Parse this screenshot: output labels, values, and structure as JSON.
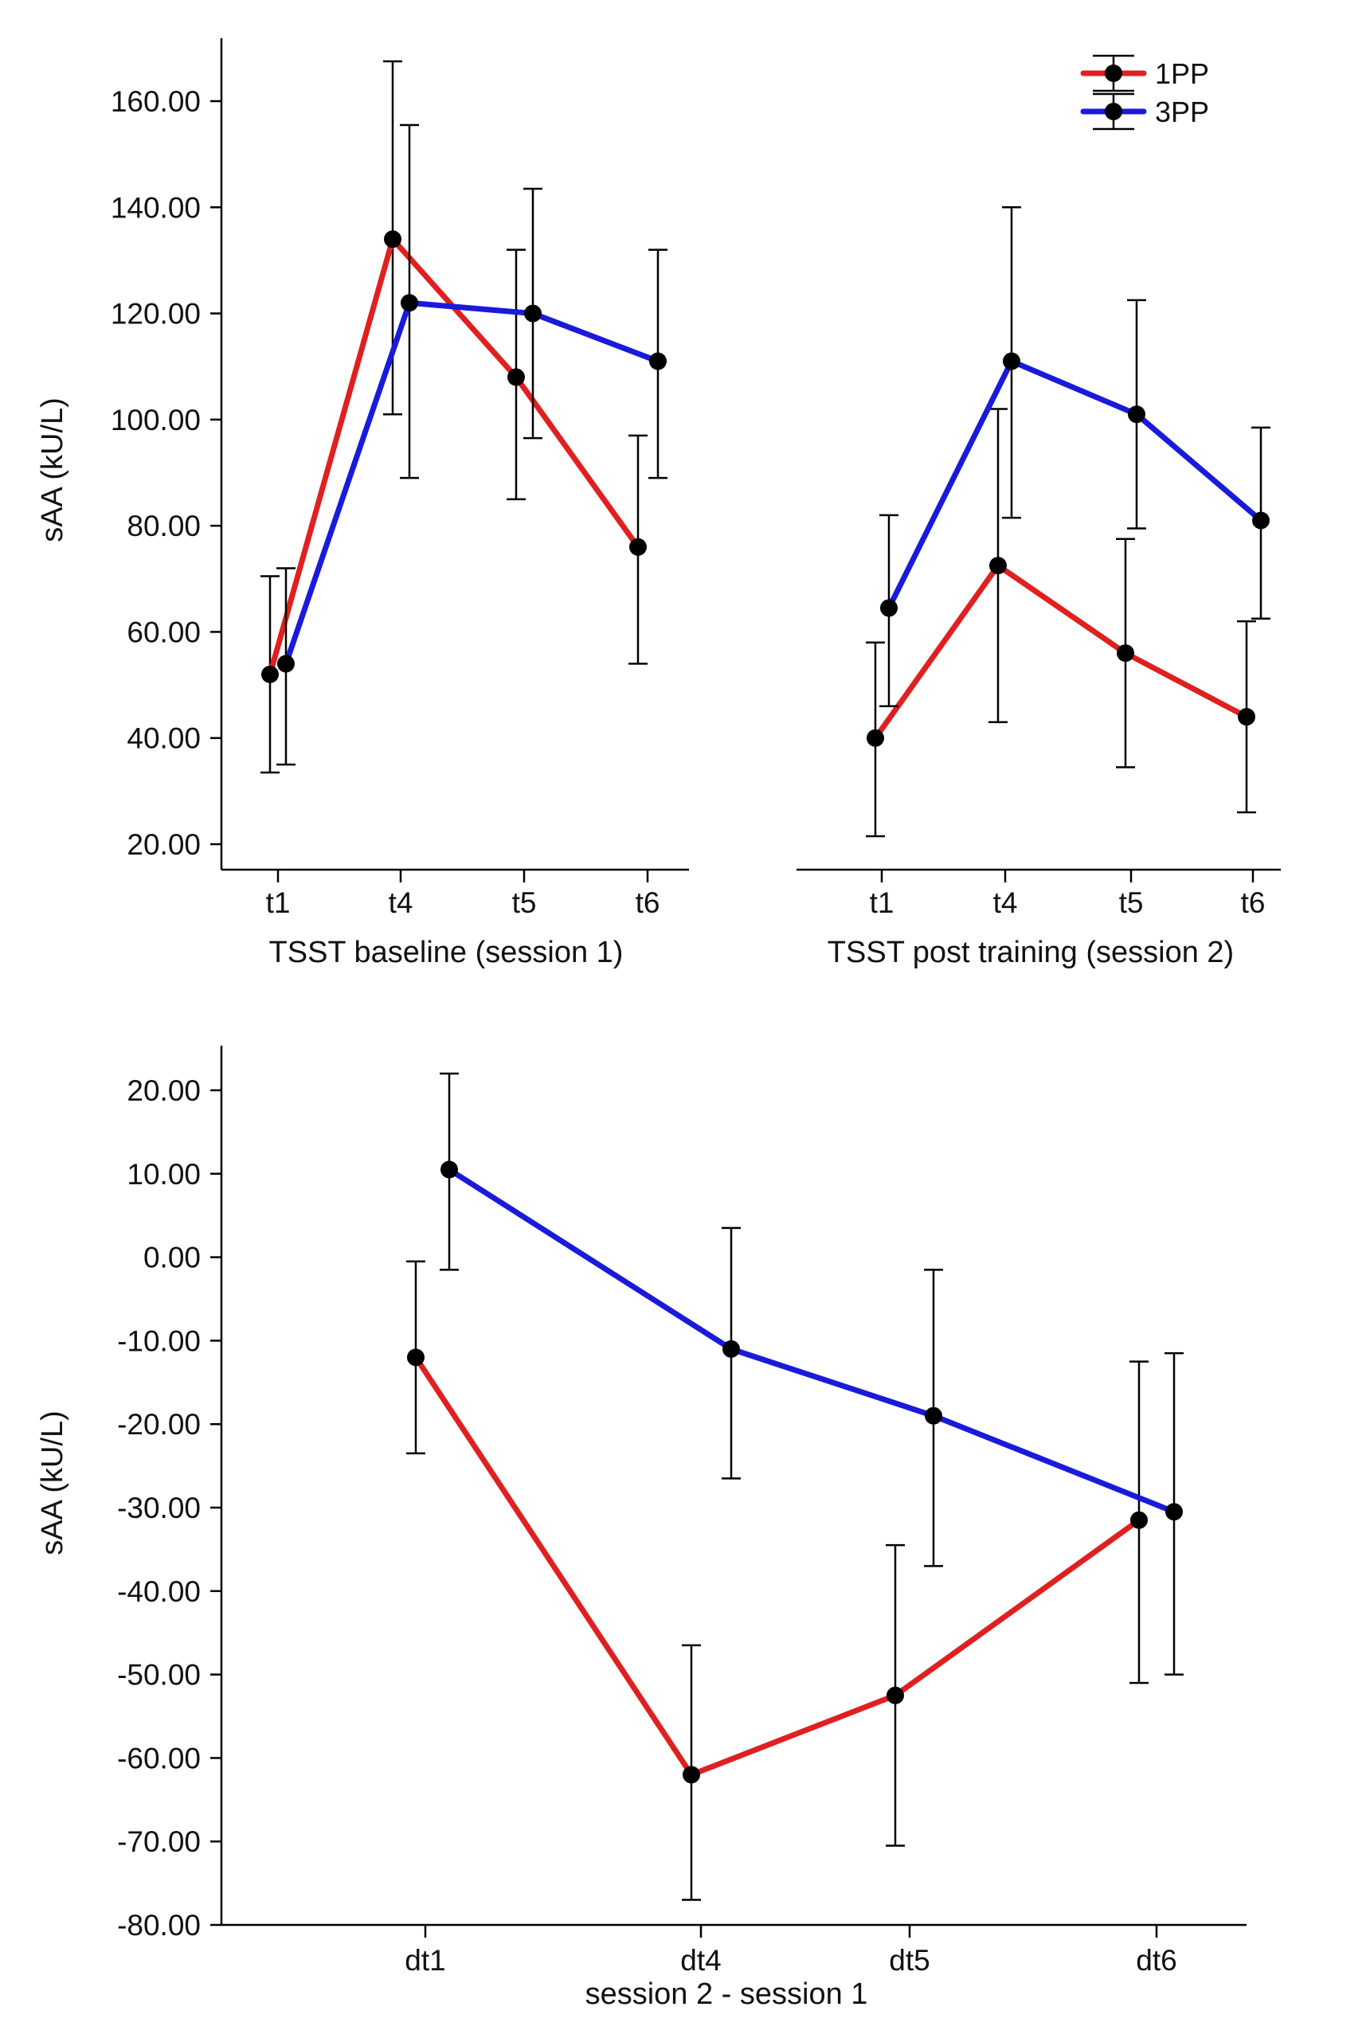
{
  "chart_data": [
    {
      "type": "line",
      "id": "baseline",
      "title": "",
      "xlabel": "TSST baseline (session 1)",
      "ylabel": "sAA (kU/L)",
      "categories": [
        "t1",
        "t4",
        "t5",
        "t6"
      ],
      "ylim": [
        16,
        171
      ],
      "yticks": [
        "20.00",
        "40.00",
        "60.00",
        "80.00",
        "100.00",
        "120.00",
        "140.00",
        "160.00"
      ],
      "grid": false,
      "series": [
        {
          "name": "1PP",
          "color": "#e02020",
          "values": [
            52,
            134,
            108,
            76
          ],
          "err_low": [
            33.5,
            101,
            85,
            54
          ],
          "err_high": [
            70.5,
            167.5,
            132,
            97
          ]
        },
        {
          "name": "3PP",
          "color": "#1a1adb",
          "values": [
            54,
            122,
            120,
            111
          ],
          "err_low": [
            35,
            89,
            96.5,
            89
          ],
          "err_high": [
            72,
            155.5,
            143.5,
            132
          ]
        }
      ]
    },
    {
      "type": "line",
      "id": "post",
      "title": "",
      "xlabel": "TSST post training (session 2)",
      "ylabel": "",
      "categories": [
        "t1",
        "t4",
        "t5",
        "t6"
      ],
      "ylim": [
        16,
        171
      ],
      "yticks": [],
      "grid": false,
      "legend": {
        "position": "top-right",
        "entries": [
          "1PP",
          "3PP"
        ]
      },
      "series": [
        {
          "name": "1PP",
          "color": "#e02020",
          "values": [
            40,
            72.5,
            56,
            44
          ],
          "err_low": [
            21.5,
            43,
            34.5,
            26
          ],
          "err_high": [
            58,
            102,
            77.5,
            62
          ]
        },
        {
          "name": "3PP",
          "color": "#1a1adb",
          "values": [
            64.5,
            111,
            101,
            81
          ],
          "err_low": [
            46,
            81.5,
            79.5,
            62.5
          ],
          "err_high": [
            82,
            140,
            122.5,
            98.5
          ]
        }
      ]
    },
    {
      "type": "line",
      "id": "diff",
      "title": "",
      "xlabel": "session 2 - session 1",
      "ylabel": "sAA (kU/L)",
      "categories": [
        "dt1",
        "dt4",
        "dt5",
        "dt6"
      ],
      "ylim": [
        -80,
        26
      ],
      "yticks": [
        "20.00",
        "10.00",
        "0.00",
        "-10.00",
        "-20.00",
        "-30.00",
        "-40.00",
        "-50.00",
        "-60.00",
        "-70.00",
        "-80.00"
      ],
      "grid": false,
      "series": [
        {
          "name": "1PP",
          "color": "#e02020",
          "values": [
            -12,
            -62,
            -52.5,
            -31.5
          ],
          "err_low": [
            -23.5,
            -77,
            -70.5,
            -51
          ],
          "err_high": [
            -0.5,
            -46.5,
            -34.5,
            -12.5
          ]
        },
        {
          "name": "3PP",
          "color": "#1a1adb",
          "values": [
            10.5,
            -11,
            -19,
            -30.5
          ],
          "err_low": [
            -1.5,
            -26.5,
            -37,
            -50
          ],
          "err_high": [
            22,
            3.5,
            -1.5,
            -11.5
          ]
        }
      ]
    }
  ]
}
